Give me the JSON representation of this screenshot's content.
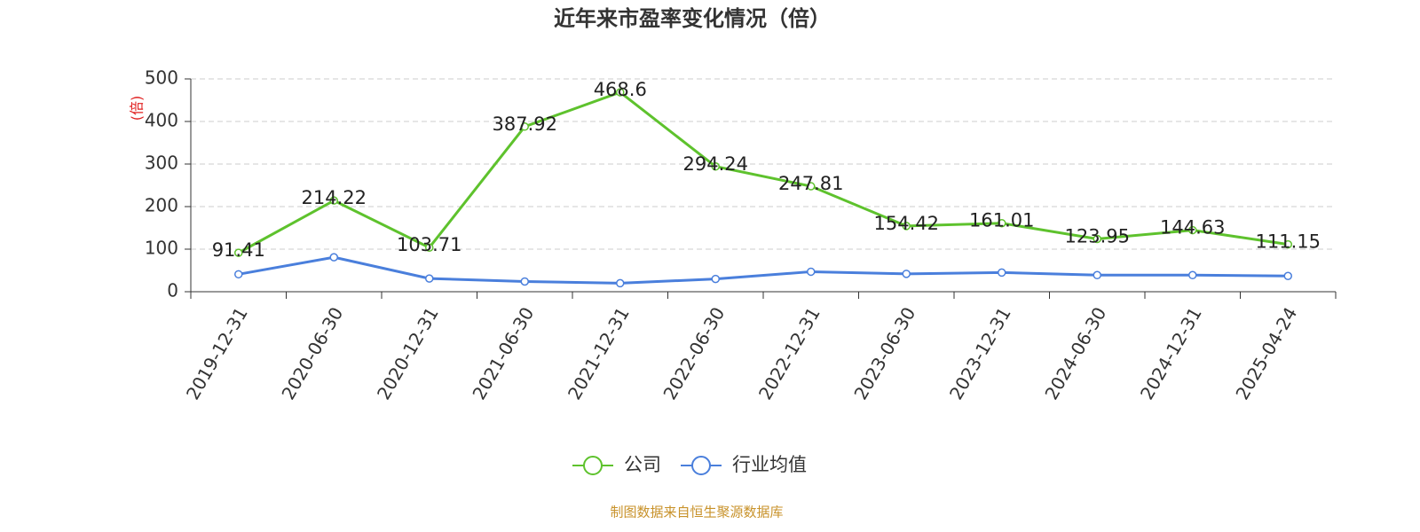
{
  "chart_data": {
    "type": "line",
    "title": "近年来市盈率变化情况（倍）",
    "y_label": "(倍)",
    "categories": [
      "2019-12-31",
      "2020-06-30",
      "2020-12-31",
      "2021-06-30",
      "2021-12-31",
      "2022-06-30",
      "2022-12-31",
      "2023-06-30",
      "2023-12-31",
      "2024-06-30",
      "2024-12-31",
      "2025-04-24"
    ],
    "series": [
      {
        "name": "公司",
        "color": "#5ec22d",
        "show_labels": true,
        "values": [
          91.41,
          214.22,
          103.71,
          387.92,
          468.6,
          294.24,
          247.81,
          154.42,
          161.01,
          123.95,
          144.63,
          111.15
        ]
      },
      {
        "name": "行业均值",
        "color": "#4a7fdc",
        "show_labels": false,
        "values": [
          41,
          81,
          31,
          24,
          20,
          30,
          47,
          42,
          45,
          39,
          39,
          37
        ]
      }
    ],
    "ylim": [
      0,
      500
    ],
    "yticks": [
      0,
      100,
      200,
      300,
      400,
      500
    ],
    "grid": true,
    "source": "制图数据来自恒生聚源数据库"
  }
}
